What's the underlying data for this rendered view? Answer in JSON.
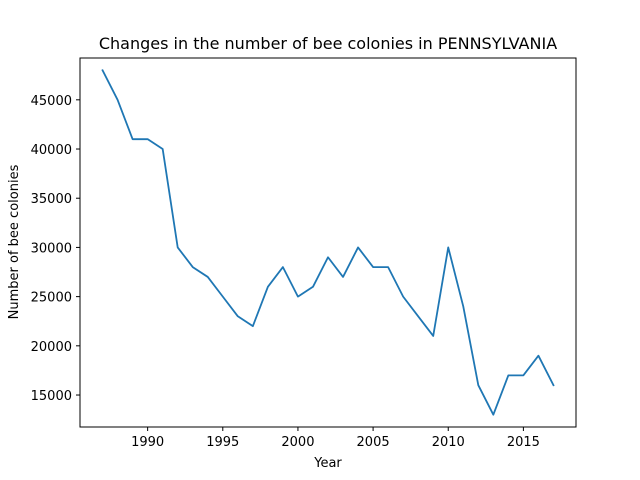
{
  "chart_data": {
    "type": "line",
    "title": "Changes in the number of bee colonies in PENNSYLVANIA",
    "xlabel": "Year",
    "ylabel": "Number of bee colonies",
    "xlim": [
      1985.5,
      2018.5
    ],
    "ylim": [
      11750,
      49250
    ],
    "xticks": [
      1990,
      1995,
      2000,
      2005,
      2010,
      2015
    ],
    "yticks": [
      15000,
      20000,
      25000,
      30000,
      35000,
      40000,
      45000
    ],
    "grid": false,
    "line_color": "#1f77b4",
    "series": [
      {
        "x": [
          1987,
          1988,
          1989,
          1990,
          1991,
          1992,
          1993,
          1994,
          1995,
          1996,
          1997,
          1998,
          1999,
          2000,
          2001,
          2002,
          2003,
          2004,
          2005,
          2006,
          2007,
          2008,
          2009,
          2010,
          2011,
          2012,
          2013,
          2014,
          2015,
          2016,
          2017
        ],
        "values": [
          48000,
          45000,
          41000,
          41000,
          40000,
          30000,
          28000,
          27000,
          25000,
          23000,
          22000,
          26000,
          28000,
          25000,
          26000,
          29000,
          27000,
          30000,
          28000,
          28000,
          25000,
          23000,
          21000,
          30000,
          24000,
          16000,
          13000,
          17000,
          17000,
          19000,
          16000
        ]
      }
    ]
  }
}
